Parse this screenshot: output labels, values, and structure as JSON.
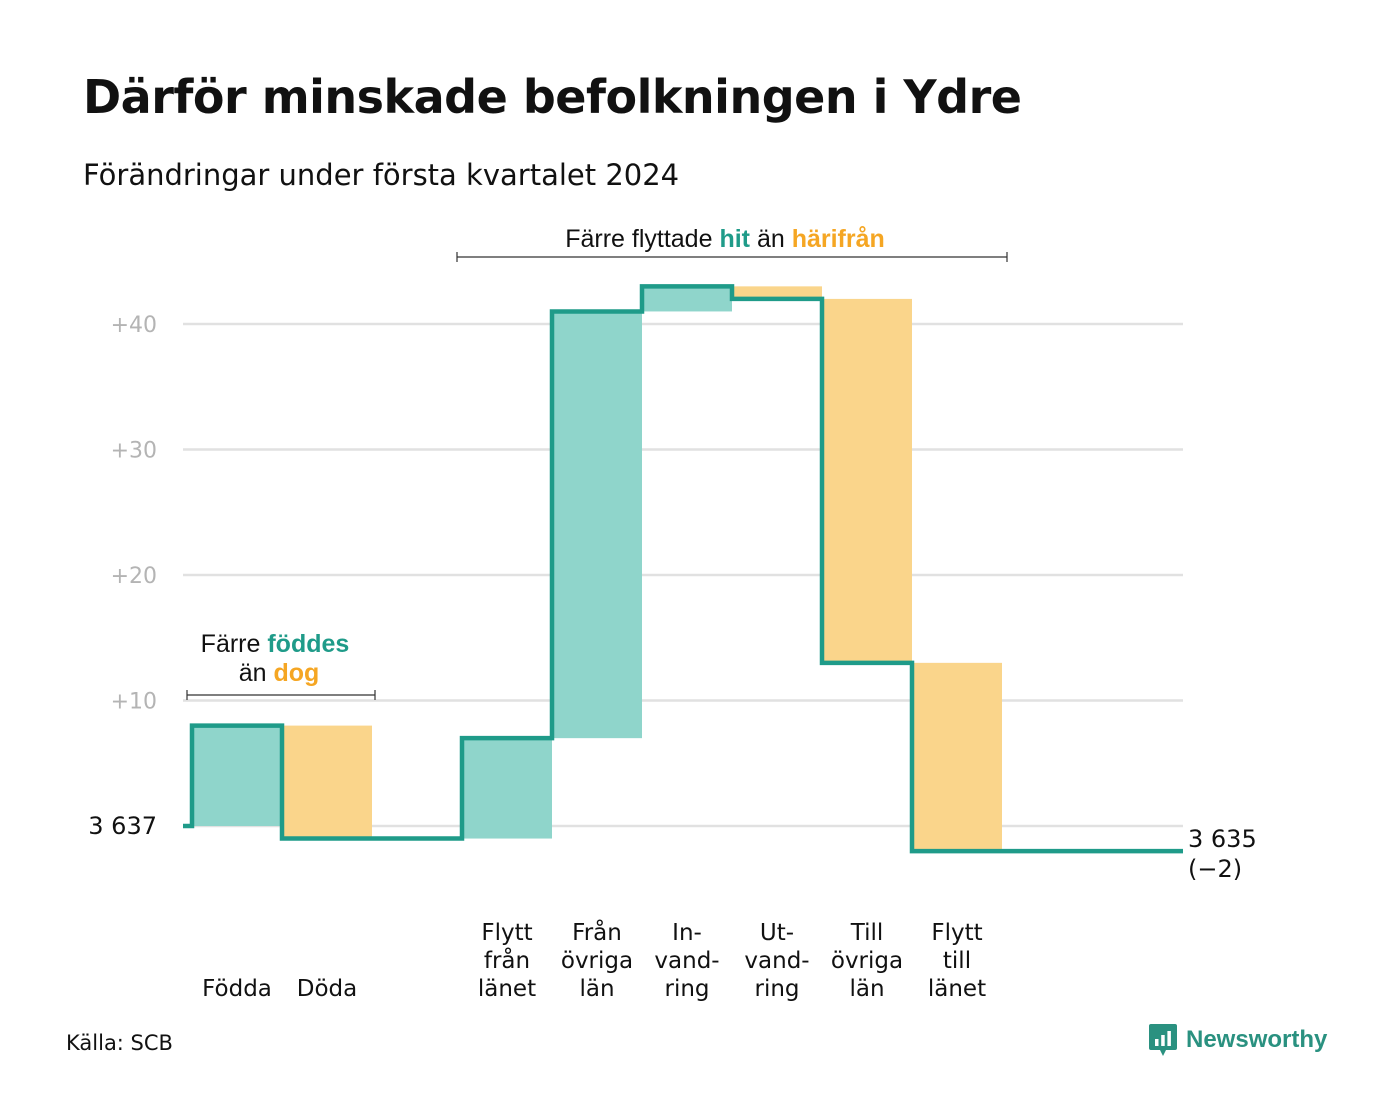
{
  "title": "Därför minskade befolkningen i Ydre",
  "subtitle": "Förändringar under första kvartalet 2024",
  "source": "Källa: SCB",
  "brand": "Newsworthy",
  "colors": {
    "increase": "#8fd5cb",
    "decrease": "#fad58b",
    "line": "#1f9b89",
    "grid": "#e1e1e1",
    "accent_green": "#1f9b89",
    "accent_orange": "#f5a623"
  },
  "chart_data": {
    "type": "waterfall",
    "start": {
      "label": "3  637",
      "value": 0
    },
    "end": {
      "label": "3 635",
      "change_label": "(−2)",
      "value": -2
    },
    "categories": [
      {
        "lines": [
          "Födda"
        ],
        "delta": 8,
        "kind": "increase"
      },
      {
        "lines": [
          "Döda"
        ],
        "delta": -9,
        "kind": "decrease"
      },
      {
        "lines": [
          "Flytt",
          "från",
          "länet"
        ],
        "delta": 8,
        "kind": "increase"
      },
      {
        "lines": [
          "Från",
          "övriga",
          "län"
        ],
        "delta": 34,
        "kind": "increase"
      },
      {
        "lines": [
          "In-",
          "vand-",
          "ring"
        ],
        "delta": 2,
        "kind": "increase"
      },
      {
        "lines": [
          "Ut-",
          "vand-",
          "ring"
        ],
        "delta": -1,
        "kind": "decrease"
      },
      {
        "lines": [
          "Till",
          "övriga",
          "län"
        ],
        "delta": -29,
        "kind": "decrease"
      },
      {
        "lines": [
          "Flytt",
          "till",
          "länet"
        ],
        "delta": -15,
        "kind": "decrease"
      }
    ],
    "y_ticks": [
      {
        "value": 10,
        "label": "+10"
      },
      {
        "value": 20,
        "label": "+20"
      },
      {
        "value": 30,
        "label": "+30"
      },
      {
        "value": 40,
        "label": "+40"
      }
    ],
    "ylim": [
      -3,
      45
    ],
    "grid": true,
    "annotations": {
      "births": {
        "line1_prefix": "Färre",
        "line1_highlight": "föddes",
        "line2_prefix": "än",
        "line2_highlight": "dog"
      },
      "migration": {
        "prefix": "Färre flyttade",
        "highlight1": "hit",
        "middle": "än",
        "highlight2": "härifrån"
      }
    }
  }
}
